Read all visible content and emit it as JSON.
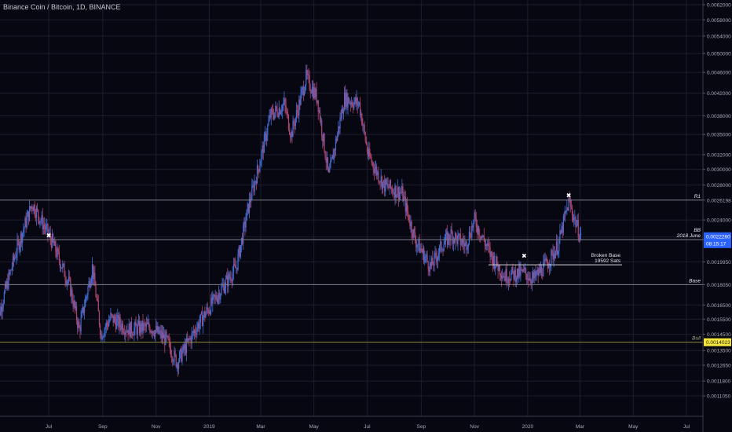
{
  "header": {
    "symbol": "Binance Coin / Bitcoin, 1D, BINANCE"
  },
  "colors": {
    "background": "#070712",
    "grid": "#1d1d2c",
    "up": "#3f6fd8",
    "down": "#b0466f",
    "level_line": "#7f7f8c",
    "bull_line": "#8a8a3a",
    "price_tag": "#2962ff",
    "bull_tag": "#f5e63c"
  },
  "chart_data": {
    "type": "candlestick",
    "y_scale": "log",
    "ylim": [
      0.00101,
      0.0062
    ],
    "y_ticks": [
      "0.0062000",
      "0.0058000",
      "0.0054000",
      "0.0050000",
      "0.0046000",
      "0.0042000",
      "0.0038000",
      "0.0035000",
      "0.0032000",
      "0.0030000",
      "0.0028000",
      "0.0026198",
      "0.0024000",
      "0.0022260",
      "0.0022001",
      "0.0019950",
      "0.0018050",
      "0.0016500",
      "0.0015500",
      "0.0014500",
      "0.0013500",
      "0.0012650",
      "0.0011800",
      "0.0011050"
    ],
    "x_labels": [
      "Jul",
      "Sep",
      "Nov",
      "2019",
      "Mar",
      "May",
      "Jul",
      "Sep",
      "Nov",
      "2020",
      "Mar",
      "May",
      "Jul"
    ],
    "x_dates": [
      "2018-07-01",
      "2018-09-01",
      "2018-11-01",
      "2019-01-01",
      "2019-03-01",
      "2019-05-01",
      "2019-07-01",
      "2019-09-01",
      "2019-11-01",
      "2020-01-01",
      "2020-03-01",
      "2020-05-01",
      "2020-07-01"
    ],
    "price_path": [
      [
        "2018-05-01",
        0.0015
      ],
      [
        "2018-05-25",
        0.0021
      ],
      [
        "2018-06-12",
        0.00258
      ],
      [
        "2018-06-25",
        0.00235
      ],
      [
        "2018-07-05",
        0.00218
      ],
      [
        "2018-07-25",
        0.0018
      ],
      [
        "2018-08-05",
        0.00148
      ],
      [
        "2018-08-20",
        0.00195
      ],
      [
        "2018-08-30",
        0.00145
      ],
      [
        "2018-09-10",
        0.00156
      ],
      [
        "2018-10-01",
        0.00148
      ],
      [
        "2018-10-25",
        0.0015
      ],
      [
        "2018-11-12",
        0.00142
      ],
      [
        "2018-11-25",
        0.00128
      ],
      [
        "2018-12-20",
        0.00152
      ],
      [
        "2019-01-10",
        0.00172
      ],
      [
        "2019-02-01",
        0.00195
      ],
      [
        "2019-02-15",
        0.00255
      ],
      [
        "2019-02-28",
        0.0031
      ],
      [
        "2019-03-12",
        0.0038
      ],
      [
        "2019-03-28",
        0.004
      ],
      [
        "2019-04-05",
        0.0035
      ],
      [
        "2019-04-22",
        0.0045
      ],
      [
        "2019-05-05",
        0.0041
      ],
      [
        "2019-05-18",
        0.0029
      ],
      [
        "2019-06-05",
        0.0041
      ],
      [
        "2019-06-22",
        0.004
      ],
      [
        "2019-07-02",
        0.0032
      ],
      [
        "2019-07-20",
        0.0028
      ],
      [
        "2019-08-10",
        0.0027
      ],
      [
        "2019-08-25",
        0.0022
      ],
      [
        "2019-09-12",
        0.00195
      ],
      [
        "2019-09-25",
        0.00215
      ],
      [
        "2019-10-05",
        0.00225
      ],
      [
        "2019-10-22",
        0.00215
      ],
      [
        "2019-11-01",
        0.0024
      ],
      [
        "2019-11-20",
        0.00205
      ],
      [
        "2019-12-05",
        0.00188
      ],
      [
        "2019-12-28",
        0.0019
      ],
      [
        "2020-01-08",
        0.00185
      ],
      [
        "2020-01-25",
        0.002
      ],
      [
        "2020-02-05",
        0.00215
      ],
      [
        "2020-02-17",
        0.0026
      ],
      [
        "2020-03-02",
        0.00222
      ]
    ],
    "levels": [
      {
        "name": "R1",
        "value": 0.0026198,
        "label": "R1",
        "tag": "0.0026198"
      },
      {
        "name": "BB",
        "value": 0.0022001,
        "label": "BB",
        "label2": "2018 June",
        "tag": "0.0022001"
      },
      {
        "name": "Broken Base",
        "value": 0.00197,
        "label": "Broken Base",
        "label2": "19592 Sats"
      },
      {
        "name": "Base",
        "value": 0.001805,
        "label": "Base",
        "tag": "0.0018050"
      },
      {
        "name": "Bull",
        "value": 0.0014,
        "label": "Bull",
        "tag": "0.0014023"
      }
    ],
    "last_price": {
      "value": "0.0022260",
      "countdown": "08:15:17"
    },
    "markers": [
      {
        "date": "2018-07-01",
        "value": 0.00222,
        "glyph": "✖"
      },
      {
        "date": "2019-12-28",
        "value": 0.00203,
        "glyph": "✖"
      },
      {
        "date": "2020-02-17",
        "value": 0.00265,
        "glyph": "✖"
      }
    ]
  }
}
